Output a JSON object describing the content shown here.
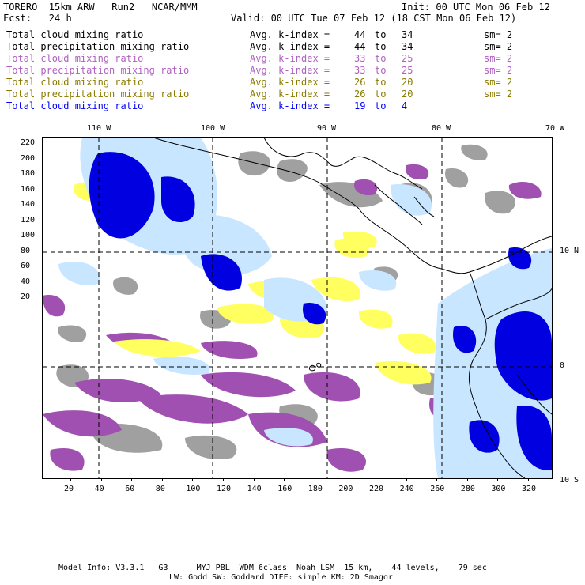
{
  "header": {
    "model": "TORERO  15km ARW   Run2   NCAR/MMM",
    "init": "Init: 00 UTC Mon 06 Feb 12",
    "fcst": "Fcst:   24 h",
    "valid": "Valid: 00 UTC Tue 07 Feb 12 (18 CST Mon 06 Feb 12)"
  },
  "legend": [
    {
      "label": "Total cloud mixing ratio",
      "avg": "Avg. k-index =",
      "from": "44",
      "to_word": "to",
      "to": "34",
      "sm": "sm= 2",
      "color": "#000000"
    },
    {
      "label": "Total precipitation mixing ratio",
      "avg": "Avg. k-index =",
      "from": "44",
      "to_word": "to",
      "to": "34",
      "sm": "sm= 2",
      "color": "#000000"
    },
    {
      "label": "Total cloud mixing ratio",
      "avg": "Avg. k-index =",
      "from": "33",
      "to_word": "to",
      "to": "25",
      "sm": "sm= 2",
      "color": "#b060c0"
    },
    {
      "label": "Total precipitation mixing ratio",
      "avg": "Avg. k-index =",
      "from": "33",
      "to_word": "to",
      "to": "25",
      "sm": "sm= 2",
      "color": "#b060c0"
    },
    {
      "label": "Total cloud mixing ratio",
      "avg": "Avg. k-index =",
      "from": "26",
      "to_word": "to",
      "to": "20",
      "sm": "sm= 2",
      "color": "#8a7a00"
    },
    {
      "label": "Total precipitation mixing ratio",
      "avg": "Avg. k-index =",
      "from": "26",
      "to_word": "to",
      "to": "20",
      "sm": "sm= 2",
      "color": "#8a7a00"
    },
    {
      "label": "Total cloud mixing ratio",
      "avg": "Avg. k-index =",
      "from": "19",
      "to_word": "to",
      "to": "4",
      "sm": "",
      "color": "#0000ff"
    }
  ],
  "map": {
    "top_lon_labels": [
      "110 W",
      "100 W",
      "90 W",
      "80 W",
      "70 W"
    ],
    "right_lat_labels": [
      "10 N",
      "0",
      "10 S"
    ],
    "left_y_labels": [
      "220",
      "200",
      "180",
      "160",
      "140",
      "120",
      "100",
      "80",
      "60",
      "40",
      "20"
    ],
    "bottom_x_labels": [
      "20",
      "40",
      "60",
      "80",
      "100",
      "120",
      "140",
      "160",
      "180",
      "200",
      "220",
      "240",
      "260",
      "280",
      "300",
      "320"
    ],
    "colors": {
      "gray": "#a0a0a0",
      "purple": "#a050b0",
      "yellow": "#ffff60",
      "light_blue": "#c8e6ff",
      "blue": "#0000e0",
      "coast": "#000000"
    }
  },
  "footer": {
    "line1": "Model Info: V3.3.1   G3      MYJ PBL  WDM 6class  Noah LSM  15 km,    44 levels,    79 sec",
    "line2": "LW: Godd SW: Goddard DIFF: simple KM: 2D Smagor"
  }
}
